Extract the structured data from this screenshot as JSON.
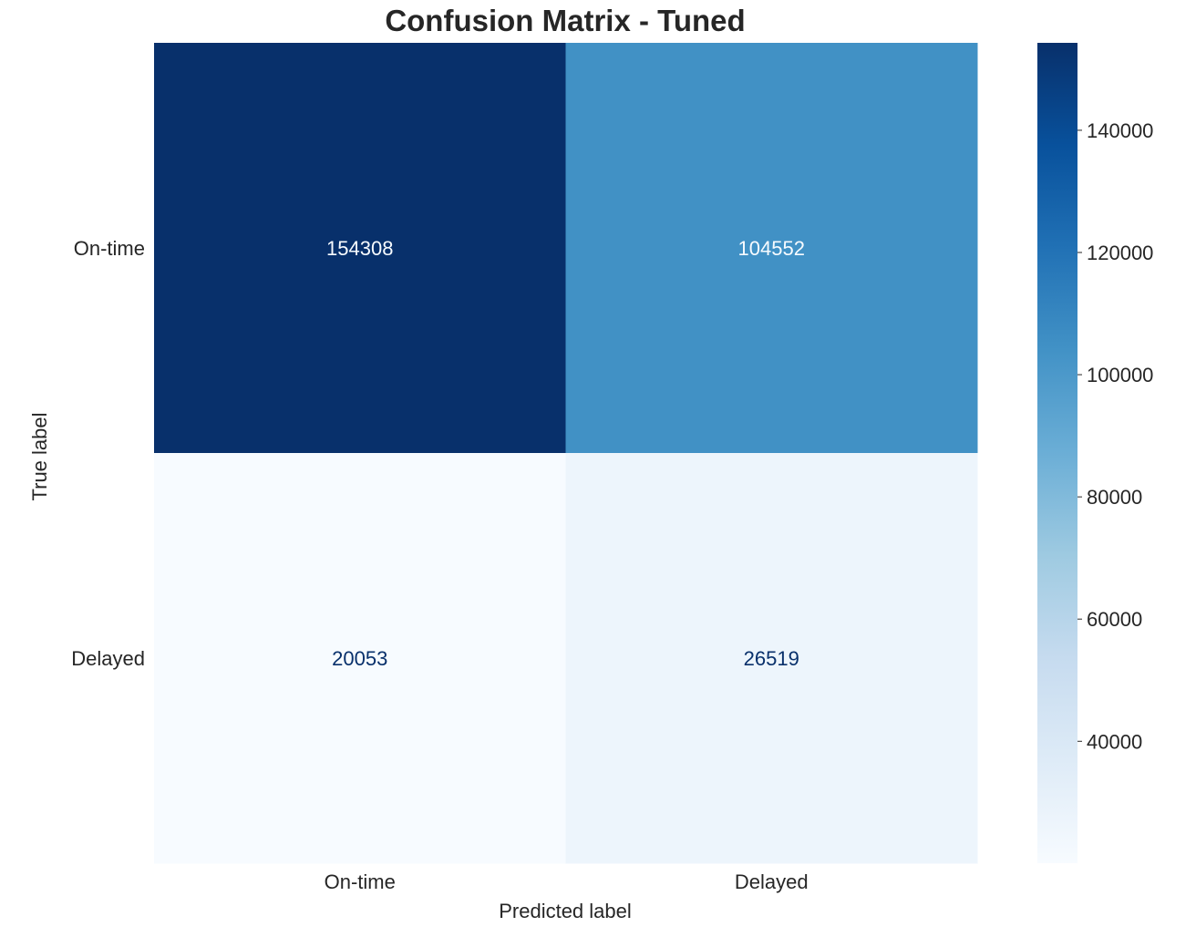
{
  "chart_data": {
    "type": "heatmap",
    "title": "Confusion Matrix - Tuned",
    "xlabel": "Predicted label",
    "ylabel": "True label",
    "x_categories": [
      "On-time",
      "Delayed"
    ],
    "y_categories": [
      "On-time",
      "Delayed"
    ],
    "values": [
      [
        154308,
        104552
      ],
      [
        20053,
        26519
      ]
    ],
    "colormap": "Blues",
    "colorbar": {
      "range": [
        20053,
        154308
      ],
      "ticks": [
        40000,
        60000,
        80000,
        100000,
        120000,
        140000
      ]
    },
    "grid": false
  }
}
